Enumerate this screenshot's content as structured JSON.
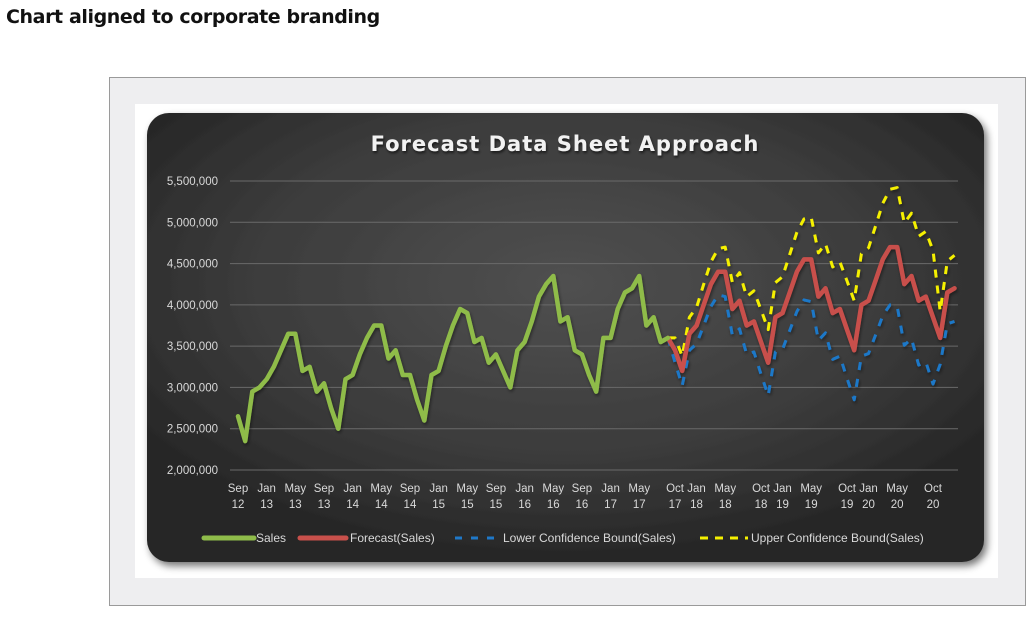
{
  "page": {
    "heading": "Chart aligned to corporate branding"
  },
  "colors": {
    "background_dark": "#2a2a2a",
    "background_mid": "#4d4d4d",
    "sales": "#8fbc4a",
    "forecast": "#c8504b",
    "lower_bound": "#1f78c8",
    "upper_bound": "#f5f000",
    "gridline": "#6a6a6a",
    "axis_text": "#d9d9d9",
    "title_text": "#f2f2f2"
  },
  "chart_data": {
    "type": "line",
    "title": "Forecast Data Sheet Approach",
    "xlabel": "",
    "ylabel": "",
    "ylim": [
      2000000,
      5500000
    ],
    "grid": true,
    "legend_position": "bottom",
    "y_ticks": [
      "2,000,000",
      "2,500,000",
      "3,000,000",
      "3,500,000",
      "4,000,000",
      "4,500,000",
      "5,000,000",
      "5,500,000"
    ],
    "x_ticks": [
      {
        "month": "Sep",
        "year": "12",
        "index": 0
      },
      {
        "month": "Jan",
        "year": "13",
        "index": 4
      },
      {
        "month": "May",
        "year": "13",
        "index": 8
      },
      {
        "month": "Sep",
        "year": "13",
        "index": 12
      },
      {
        "month": "Jan",
        "year": "14",
        "index": 16
      },
      {
        "month": "May",
        "year": "14",
        "index": 20
      },
      {
        "month": "Sep",
        "year": "14",
        "index": 24
      },
      {
        "month": "Jan",
        "year": "15",
        "index": 28
      },
      {
        "month": "May",
        "year": "15",
        "index": 32
      },
      {
        "month": "Sep",
        "year": "15",
        "index": 36
      },
      {
        "month": "Jan",
        "year": "16",
        "index": 40
      },
      {
        "month": "May",
        "year": "16",
        "index": 44
      },
      {
        "month": "Sep",
        "year": "16",
        "index": 48
      },
      {
        "month": "Jan",
        "year": "17",
        "index": 52
      },
      {
        "month": "May",
        "year": "17",
        "index": 56
      },
      {
        "month": "Oct",
        "year": "17",
        "index": 61
      },
      {
        "month": "Jan",
        "year": "18",
        "index": 64
      },
      {
        "month": "May",
        "year": "18",
        "index": 68
      },
      {
        "month": "Oct",
        "year": "18",
        "index": 73
      },
      {
        "month": "Jan",
        "year": "19",
        "index": 76
      },
      {
        "month": "May",
        "year": "19",
        "index": 80
      },
      {
        "month": "Oct",
        "year": "19",
        "index": 85
      },
      {
        "month": "Jan",
        "year": "20",
        "index": 88
      },
      {
        "month": "May",
        "year": "20",
        "index": 92
      },
      {
        "month": "Oct",
        "year": "20",
        "index": 97
      }
    ],
    "x_start": "Sep 2012",
    "series": [
      {
        "name": "Sales",
        "style": "solid",
        "start_index": 0,
        "values": [
          2650000,
          2350000,
          2950000,
          3000000,
          3100000,
          3250000,
          3450000,
          3650000,
          3650000,
          3200000,
          3250000,
          2950000,
          3050000,
          2750000,
          2500000,
          3100000,
          3150000,
          3400000,
          3600000,
          3750000,
          3750000,
          3350000,
          3450000,
          3150000,
          3150000,
          2850000,
          2600000,
          3150000,
          3200000,
          3500000,
          3750000,
          3950000,
          3900000,
          3550000,
          3600000,
          3300000,
          3400000,
          3200000,
          3000000,
          3450000,
          3550000,
          3800000,
          4100000,
          4250000,
          4350000,
          3800000,
          3850000,
          3450000,
          3400000,
          3150000,
          2950000,
          3600000,
          3600000,
          3950000,
          4150000,
          4200000,
          4350000,
          3750000,
          3850000,
          3550000,
          3600000
        ]
      },
      {
        "name": "Forecast(Sales)",
        "style": "solid",
        "start_index": 60,
        "values": [
          3600000,
          3450000,
          3200000,
          3650000,
          3750000,
          4000000,
          4250000,
          4400000,
          4400000,
          3950000,
          4050000,
          3750000,
          3800000,
          3550000,
          3300000,
          3850000,
          3900000,
          4150000,
          4400000,
          4550000,
          4550000,
          4100000,
          4200000,
          3900000,
          3950000,
          3700000,
          3450000,
          4000000,
          4050000,
          4300000,
          4550000,
          4700000,
          4700000,
          4250000,
          4350000,
          4050000,
          4100000,
          3850000,
          3600000,
          4150000,
          4200000
        ]
      },
      {
        "name": "Lower Confidence Bound(Sales)",
        "style": "dashed",
        "start_index": 60,
        "values": [
          3600000,
          3300000,
          3020000,
          3450000,
          3530000,
          3750000,
          3980000,
          4120000,
          4100000,
          3630000,
          3710000,
          3400000,
          3430000,
          3160000,
          2900000,
          3430000,
          3460000,
          3690000,
          3920000,
          4060000,
          4040000,
          3570000,
          3660000,
          3340000,
          3380000,
          3110000,
          2850000,
          3380000,
          3410000,
          3640000,
          3870000,
          4000000,
          3980000,
          3510000,
          3590000,
          3270000,
          3310000,
          3040000,
          3280000,
          3770000,
          3800000
        ]
      },
      {
        "name": "Upper Confidence Bound(Sales)",
        "style": "dashed",
        "start_index": 60,
        "values": [
          3600000,
          3600000,
          3380000,
          3850000,
          3970000,
          4250000,
          4520000,
          4680000,
          4700000,
          4270000,
          4390000,
          4100000,
          4170000,
          3940000,
          3700000,
          4270000,
          4340000,
          4610000,
          4880000,
          5040000,
          5060000,
          4630000,
          4740000,
          4460000,
          4520000,
          4290000,
          4050000,
          4620000,
          4690000,
          4960000,
          5230000,
          5400000,
          5420000,
          4990000,
          5110000,
          4830000,
          4890000,
          4660000,
          3920000,
          4530000,
          4600000
        ]
      }
    ]
  },
  "legend": {
    "items": [
      {
        "label": "Sales",
        "key": "sales"
      },
      {
        "label": "Forecast(Sales)",
        "key": "forecast"
      },
      {
        "label": "Lower Confidence Bound(Sales)",
        "key": "lower"
      },
      {
        "label": "Upper Confidence Bound(Sales)",
        "key": "upper"
      }
    ]
  }
}
